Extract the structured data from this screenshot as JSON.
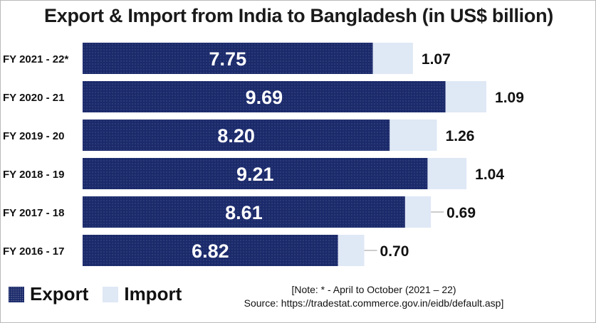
{
  "chart_data": {
    "type": "bar",
    "orientation": "horizontal",
    "stacked": true,
    "title": "Export & Import from India to Bangladesh (in US$ billion)",
    "categories": [
      "FY 2021 - 22*",
      "FY 2020 - 21",
      "FY 2019 - 20",
      "FY 2018 - 19",
      "FY 2017 - 18",
      "FY 2016 - 17"
    ],
    "series": [
      {
        "name": "Export",
        "values": [
          7.75,
          9.69,
          8.2,
          9.21,
          8.61,
          6.82
        ],
        "labels": [
          "7.75",
          "9.69",
          "8.20",
          "9.21",
          "8.61",
          "6.82"
        ],
        "color": "#1b2a6b"
      },
      {
        "name": "Import",
        "values": [
          1.07,
          1.09,
          1.26,
          1.04,
          0.69,
          0.7
        ],
        "labels": [
          "1.07",
          "1.09",
          "1.26",
          "1.04",
          "0.69",
          "0.70"
        ],
        "color": "#dfe8f5"
      }
    ],
    "xlim": [
      0,
      11.5
    ],
    "grid": false,
    "legend_position": "bottom-left"
  },
  "legend": {
    "export_label": "Export",
    "import_label": "Import"
  },
  "note": {
    "line1": "[Note: * - April to October (2021 – 22)",
    "line2": "Source: https://tradestat.commerce.gov.in/eidb/default.asp]"
  }
}
